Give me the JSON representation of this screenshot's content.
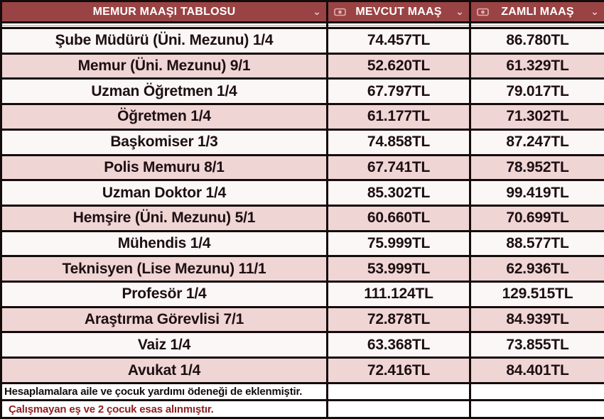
{
  "header": {
    "title": "MEMUR MAAŞI TABLOSU",
    "current_label": "MEVCUT MAAŞ",
    "raised_label": "ZAMLI MAAŞ",
    "chevron": "⌄"
  },
  "chart_data": {
    "type": "table",
    "title": "MEMUR MAAŞI TABLOSU",
    "columns": [
      "MEMUR MAAŞI TABLOSU",
      "MEVCUT MAAŞ",
      "ZAMLI MAAŞ"
    ],
    "currency_suffix": "TL",
    "rows": [
      [
        "Şube Müdürü (Üni. Mezunu) 1/4",
        "74.457TL",
        "86.780TL"
      ],
      [
        "Memur (Üni. Mezunu) 9/1",
        "52.620TL",
        "61.329TL"
      ],
      [
        "Uzman Öğretmen 1/4",
        "67.797TL",
        "79.017TL"
      ],
      [
        "Öğretmen 1/4",
        "61.177TL",
        "71.302TL"
      ],
      [
        "Başkomiser 1/3",
        "74.858TL",
        "87.247TL"
      ],
      [
        "Polis Memuru 8/1",
        "67.741TL",
        "78.952TL"
      ],
      [
        "Uzman Doktor 1/4",
        "85.302TL",
        "99.419TL"
      ],
      [
        "Hemşire (Üni. Mezunu) 5/1",
        "60.660TL",
        "70.699TL"
      ],
      [
        "Mühendis 1/4",
        "75.999TL",
        "88.577TL"
      ],
      [
        "Teknisyen (Lise Mezunu) 11/1",
        "53.999TL",
        "62.936TL"
      ],
      [
        "Profesör 1/4",
        "111.124TL",
        "129.515TL"
      ],
      [
        "Araştırma Görevlisi 7/1",
        "72.878TL",
        "84.939TL"
      ],
      [
        "Vaiz 1/4",
        "63.368TL",
        "73.855TL"
      ],
      [
        "Avukat 1/4",
        "72.416TL",
        "84.401TL"
      ]
    ],
    "footnotes": [
      "Hesaplamalara aile ve çocuk yardımı ödeneği de eklenmiştir.",
      "Çalışmayan eş ve 2 çocuk esas alınmıştır."
    ]
  },
  "colors": {
    "header_bg": "#9a4344",
    "header_text": "#ffffff",
    "row_bg": "#fbf7f6",
    "row_alt_bg": "#f0d5d5",
    "border": "#140b0b",
    "footnote_primary": "#140d0d",
    "footnote_secondary": "#8c2022"
  }
}
